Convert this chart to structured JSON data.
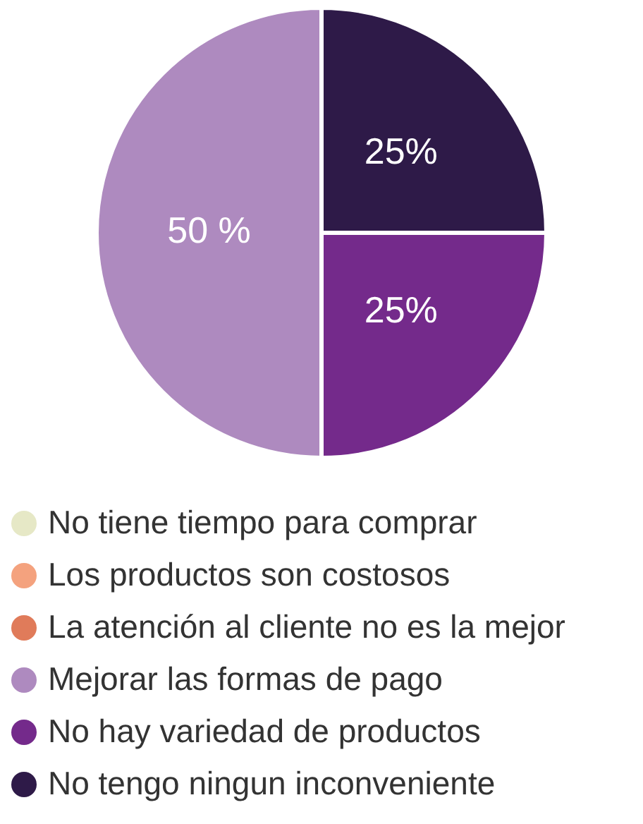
{
  "chart_data": {
    "type": "pie",
    "categories": [
      "No tiene tiempo para comprar",
      "Los productos son costosos",
      "La atención al cliente no es la mejor",
      "Mejorar las formas de pago",
      "No hay variedad de productos",
      "No tengo ningun inconveniente"
    ],
    "values": [
      0,
      0,
      0,
      50,
      25,
      25
    ],
    "colors": [
      "#e6e8c6",
      "#f4a27e",
      "#e07b5a",
      "#ae8abf",
      "#742a8b",
      "#2e1a48"
    ],
    "value_labels": [
      null,
      null,
      null,
      "50 %",
      "25%",
      "25%"
    ],
    "legend": "bottom"
  }
}
